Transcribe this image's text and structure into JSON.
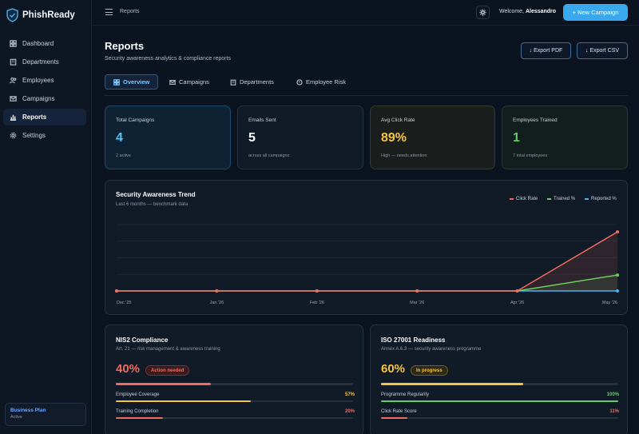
{
  "app": {
    "name": "PhishReady"
  },
  "sidebar": {
    "items": [
      {
        "label": "Dashboard"
      },
      {
        "label": "Departments"
      },
      {
        "label": "Employees"
      },
      {
        "label": "Campaigns"
      },
      {
        "label": "Reports"
      },
      {
        "label": "Settings"
      }
    ],
    "plan": {
      "name": "Business Plan",
      "status": "Active"
    }
  },
  "topbar": {
    "breadcrumb": "Reports",
    "welcome_prefix": "Welcome, ",
    "user_name": "Alessandro",
    "new_campaign_label": "+ New Campaign"
  },
  "page": {
    "title": "Reports",
    "subtitle": "Security awareness analytics & compliance reports",
    "export_pdf": "Export PDF",
    "export_csv": "Export CSV"
  },
  "tabs": [
    {
      "label": "Overview"
    },
    {
      "label": "Campaigns"
    },
    {
      "label": "Departments"
    },
    {
      "label": "Employee Risk"
    }
  ],
  "stats": [
    {
      "label": "Total Campaigns",
      "value": "4",
      "sub": "2 active",
      "color": "#4fc3f7"
    },
    {
      "label": "Emails Sent",
      "value": "5",
      "sub": "across all campaigns",
      "color": "#ffffff"
    },
    {
      "label": "Avg Click Rate",
      "value": "89%",
      "sub": "High — needs attention",
      "color": "#f5c542"
    },
    {
      "label": "Employees Trained",
      "value": "1",
      "sub": "7 total employees",
      "color": "#5fd068"
    }
  ],
  "trend": {
    "title": "Security Awareness Trend",
    "subtitle": "Last 6 months — benchmark data"
  },
  "chart_data": {
    "type": "line",
    "categories": [
      "Dec '25",
      "Jan '26",
      "Feb '26",
      "Mar '26",
      "Apr '26",
      "May '26"
    ],
    "series": [
      {
        "name": "Click Rate",
        "color": "#ef6b5f",
        "values": [
          0,
          0,
          0,
          0,
          0,
          89
        ]
      },
      {
        "name": "Trained %",
        "color": "#6ccf5e",
        "values": [
          0,
          0,
          0,
          0,
          0,
          24
        ]
      },
      {
        "name": "Reported %",
        "color": "#4fb3f0",
        "values": [
          0,
          0,
          0,
          0,
          0,
          0
        ]
      }
    ],
    "ylim": [
      0,
      100
    ],
    "grid": true,
    "legend": "top-right"
  },
  "compliance": [
    {
      "title": "NIS2 Compliance",
      "subtitle": "Art. 21 — risk management & awareness training",
      "pct": "40%",
      "progress": 0.4,
      "color": "#ef6b5f",
      "badge": "Action needed",
      "badge_color": "#ef6b5f",
      "metrics": [
        {
          "label": "Employee Coverage",
          "value": "57%",
          "progress": 0.57,
          "color": "#f5c542"
        },
        {
          "label": "Training Completion",
          "value": "20%",
          "progress": 0.2,
          "color": "#ef6b5f"
        }
      ]
    },
    {
      "title": "ISO 27001 Readiness",
      "subtitle": "Annex A.6.3 — security awareness programme",
      "pct": "60%",
      "progress": 0.6,
      "color": "#f5c542",
      "badge": "In progress",
      "badge_color": "#f5c542",
      "metrics": [
        {
          "label": "Programme Regularity",
          "value": "100%",
          "progress": 1.0,
          "color": "#5fd068"
        },
        {
          "label": "Click Rate Score",
          "value": "11%",
          "progress": 0.11,
          "color": "#ef6b5f"
        }
      ]
    }
  ]
}
